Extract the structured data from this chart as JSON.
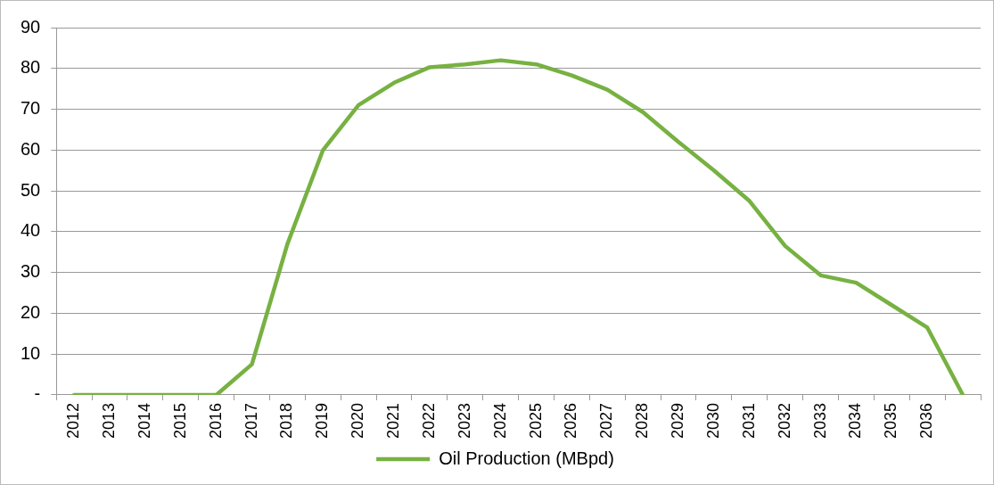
{
  "chart_data": {
    "type": "line",
    "categories": [
      "2012",
      "2013",
      "2014",
      "2015",
      "2016",
      "2017",
      "2018",
      "2019",
      "2020",
      "2021",
      "2022",
      "2023",
      "2024",
      "2025",
      "2026",
      "2027",
      "2028",
      "2029",
      "2030",
      "2031",
      "2032",
      "2033",
      "2034",
      "2035",
      "2036",
      null
    ],
    "series": [
      {
        "name": "Oil Production (MBpd)",
        "color": "#77b142",
        "values": [
          0,
          0,
          0,
          0,
          0,
          7.5,
          37,
          60,
          71,
          76.5,
          80.3,
          81,
          82,
          81,
          78.3,
          74.8,
          69.3,
          62,
          55,
          47.5,
          36.5,
          29.3,
          27.5,
          22,
          16.5,
          0
        ]
      }
    ],
    "ylim": [
      0,
      90
    ],
    "yticks": [
      {
        "value": 0,
        "label": "-"
      },
      10,
      20,
      30,
      40,
      50,
      60,
      70,
      80,
      90
    ],
    "grid": "y",
    "legend": "bottom",
    "marker": "none",
    "line_style": "solid"
  }
}
